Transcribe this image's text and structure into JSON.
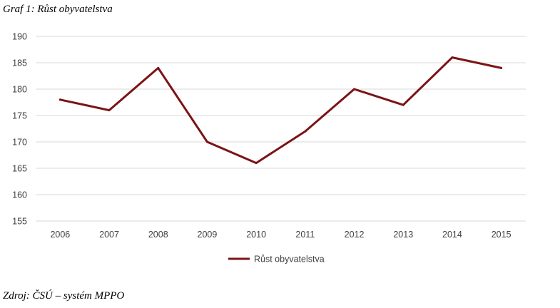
{
  "figure": {
    "caption": "Graf 1: Růst obyvatelstva",
    "source": "Zdroj: ČSÚ – systém MPPO"
  },
  "chart_data": {
    "type": "line",
    "title": "",
    "xlabel": "",
    "ylabel": "",
    "categories": [
      "2006",
      "2007",
      "2008",
      "2009",
      "2010",
      "2011",
      "2012",
      "2013",
      "2014",
      "2015"
    ],
    "series": [
      {
        "name": "Růst obyvatelstva",
        "values": [
          178,
          176,
          184,
          170,
          166,
          172,
          180,
          177,
          186,
          184
        ],
        "color": "#7B1416"
      }
    ],
    "ylim": [
      155,
      190
    ],
    "yticks": [
      190,
      185,
      180,
      175,
      170,
      165,
      160,
      155
    ],
    "grid": true,
    "gridColor": "#D9D9D9",
    "legend": "bottom"
  }
}
